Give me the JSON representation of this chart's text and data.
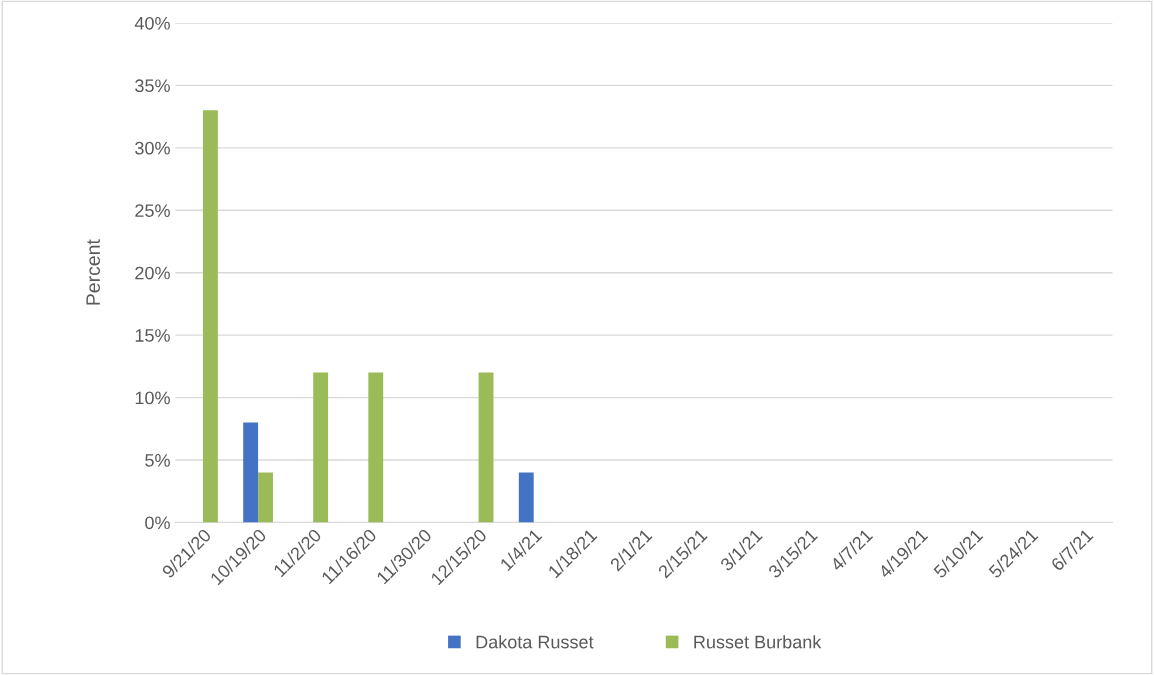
{
  "chart_data": {
    "type": "bar",
    "ylabel": "Percent",
    "categories": [
      "9/21/20",
      "10/19/20",
      "11/2/20",
      "11/16/20",
      "11/30/20",
      "12/15/20",
      "1/4/21",
      "1/18/21",
      "2/1/21",
      "2/15/21",
      "3/1/21",
      "3/15/21",
      "4/7/21",
      "4/19/21",
      "5/10/21",
      "5/24/21",
      "6/7/21"
    ],
    "series": [
      {
        "name": "Dakota Russet",
        "color": "#4472c4",
        "values": [
          0,
          8,
          0,
          0,
          0,
          0,
          4,
          0,
          0,
          0,
          0,
          0,
          0,
          0,
          0,
          0,
          0
        ]
      },
      {
        "name": "Russet Burbank",
        "color": "#9bbb59",
        "values": [
          33,
          4,
          12,
          12,
          0,
          12,
          0,
          0,
          0,
          0,
          0,
          0,
          0,
          0,
          0,
          0,
          0
        ]
      }
    ],
    "ylim": [
      0,
      40
    ],
    "yticks": [
      {
        "value": 0,
        "label": "0%"
      },
      {
        "value": 5,
        "label": "5%"
      },
      {
        "value": 10,
        "label": "10%"
      },
      {
        "value": 15,
        "label": "15%"
      },
      {
        "value": 20,
        "label": "20%"
      },
      {
        "value": 25,
        "label": "25%"
      },
      {
        "value": 30,
        "label": "30%"
      },
      {
        "value": 35,
        "label": "35%"
      },
      {
        "value": 40,
        "label": "40%"
      }
    ],
    "grid": "y",
    "legend": "bottom"
  }
}
